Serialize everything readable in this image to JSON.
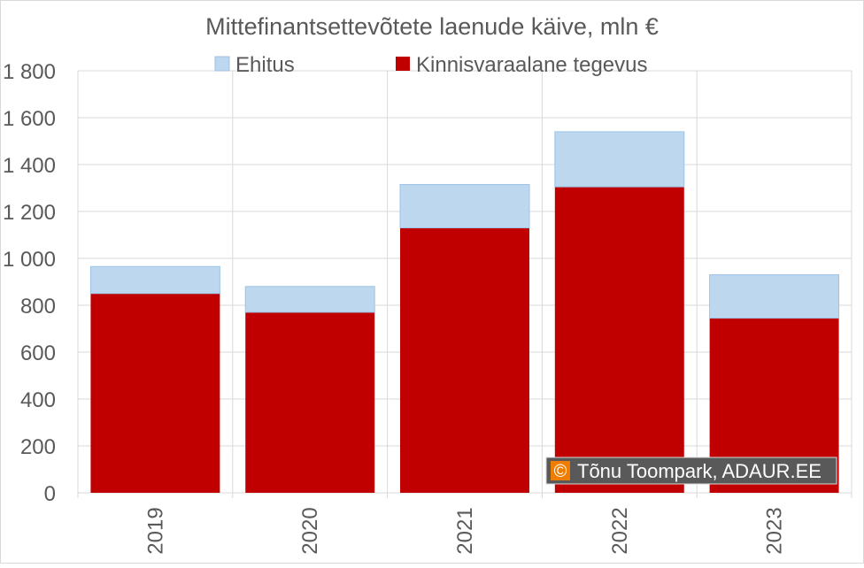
{
  "chart_data": {
    "type": "bar",
    "stacked": true,
    "title": "Mittefinantsettevõtete laenude käive, mln €",
    "categories": [
      "2019",
      "2020",
      "2021",
      "2022",
      "2023"
    ],
    "series": [
      {
        "name": "Kinnisvaraalane tegevus",
        "color": "#C00000",
        "values": [
          850,
          770,
          1130,
          1305,
          745
        ]
      },
      {
        "name": "Ehitus",
        "color": "#BDD7EE",
        "values": [
          115,
          110,
          185,
          235,
          185
        ]
      }
    ],
    "ylim": [
      0,
      1800
    ],
    "yticks": [
      0,
      200,
      400,
      600,
      800,
      1000,
      1200,
      1400,
      1600,
      1800
    ],
    "ytick_labels": [
      "0",
      "200",
      "400",
      "600",
      "800",
      "1 000",
      "1 200",
      "1 400",
      "1 600",
      "1 800"
    ],
    "grid": true,
    "legend_position": "top",
    "legend_order": [
      "Ehitus",
      "Kinnisvaraalane tegevus"
    ]
  },
  "watermark": {
    "symbol": "©",
    "text": "Tõnu Toompark, ADAUR.EE"
  },
  "colors": {
    "gridline": "#D9D9D9",
    "axis_text": "#595959",
    "watermark_bg": "#595959",
    "watermark_symbol_bg": "#F07D00"
  }
}
